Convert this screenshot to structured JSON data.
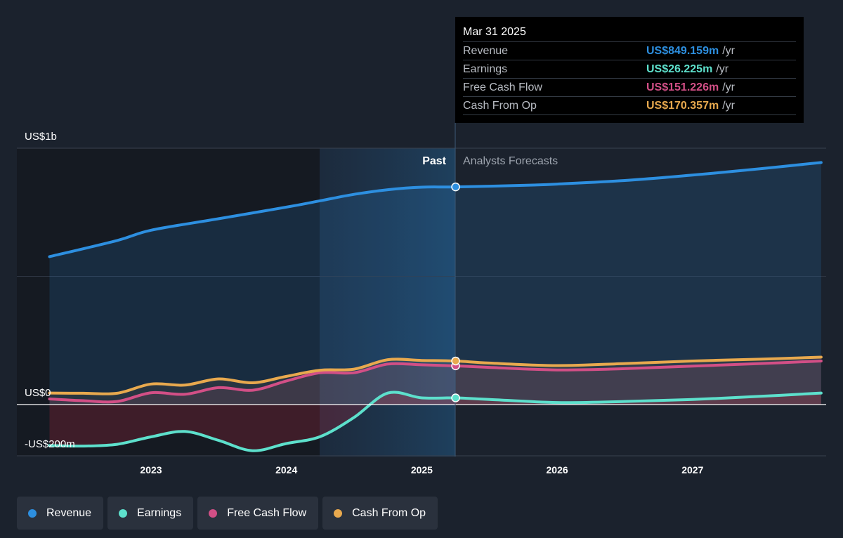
{
  "tooltip": {
    "date": "Mar 31 2025",
    "rows": [
      {
        "label": "Revenue",
        "value": "US$849.159m",
        "unit": "/yr",
        "color": "#2d8fe0"
      },
      {
        "label": "Earnings",
        "value": "US$26.225m",
        "unit": "/yr",
        "color": "#5de0cc"
      },
      {
        "label": "Free Cash Flow",
        "value": "US$151.226m",
        "unit": "/yr",
        "color": "#d24f86"
      },
      {
        "label": "Cash From Op",
        "value": "US$170.357m",
        "unit": "/yr",
        "color": "#e8a94e"
      }
    ]
  },
  "legend": [
    {
      "label": "Revenue",
      "color": "#2d8fe0"
    },
    {
      "label": "Earnings",
      "color": "#5de0cc"
    },
    {
      "label": "Free Cash Flow",
      "color": "#d24f86"
    },
    {
      "label": "Cash From Op",
      "color": "#e8a94e"
    }
  ],
  "chart_data": {
    "type": "line",
    "y_tick_labels": [
      "US$1b",
      "US$0",
      "-US$200m"
    ],
    "x_tick_labels": [
      "2023",
      "2024",
      "2025",
      "2026",
      "2027"
    ],
    "past_label": "Past",
    "forecast_label": "Analysts Forecasts",
    "split_date": 2025.25,
    "ylim": [
      -200,
      1000
    ],
    "series": [
      {
        "name": "Revenue",
        "color": "#2d8fe0",
        "x": [
          2022.25,
          2022.75,
          2023.0,
          2023.5,
          2024.0,
          2024.25,
          2024.5,
          2024.75,
          2025.0,
          2025.25,
          2025.75,
          2026.0,
          2026.5,
          2027.0,
          2027.5,
          2027.95
        ],
        "values": [
          577,
          640,
          680,
          725,
          770,
          795,
          820,
          838,
          848,
          849,
          855,
          860,
          874,
          895,
          920,
          944
        ]
      },
      {
        "name": "Earnings",
        "color": "#5de0cc",
        "x": [
          2022.25,
          2022.5,
          2022.75,
          2023.0,
          2023.25,
          2023.5,
          2023.75,
          2024.0,
          2024.25,
          2024.5,
          2024.75,
          2025.0,
          2025.25,
          2025.5,
          2026.0,
          2026.5,
          2027.0,
          2027.5,
          2027.95
        ],
        "values": [
          -160,
          -162,
          -155,
          -126,
          -105,
          -140,
          -180,
          -152,
          -125,
          -50,
          45,
          26,
          26,
          20,
          8,
          12,
          20,
          32,
          45
        ]
      },
      {
        "name": "Free Cash Flow",
        "color": "#d24f86",
        "x": [
          2022.25,
          2022.5,
          2022.75,
          2023.0,
          2023.25,
          2023.5,
          2023.75,
          2024.0,
          2024.25,
          2024.5,
          2024.75,
          2025.0,
          2025.25,
          2025.5,
          2026.0,
          2026.5,
          2027.0,
          2027.5,
          2027.95
        ],
        "values": [
          22,
          15,
          12,
          46,
          40,
          66,
          56,
          92,
          124,
          124,
          158,
          155,
          151,
          145,
          135,
          140,
          150,
          160,
          170
        ]
      },
      {
        "name": "Cash From Op",
        "color": "#e8a94e",
        "x": [
          2022.25,
          2022.5,
          2022.75,
          2023.0,
          2023.25,
          2023.5,
          2023.75,
          2024.0,
          2024.25,
          2024.5,
          2024.75,
          2025.0,
          2025.25,
          2025.5,
          2026.0,
          2026.5,
          2027.0,
          2027.5,
          2027.95
        ],
        "values": [
          45,
          44,
          44,
          80,
          76,
          100,
          85,
          110,
          134,
          138,
          175,
          172,
          170,
          162,
          152,
          160,
          170,
          177,
          185
        ]
      }
    ]
  }
}
